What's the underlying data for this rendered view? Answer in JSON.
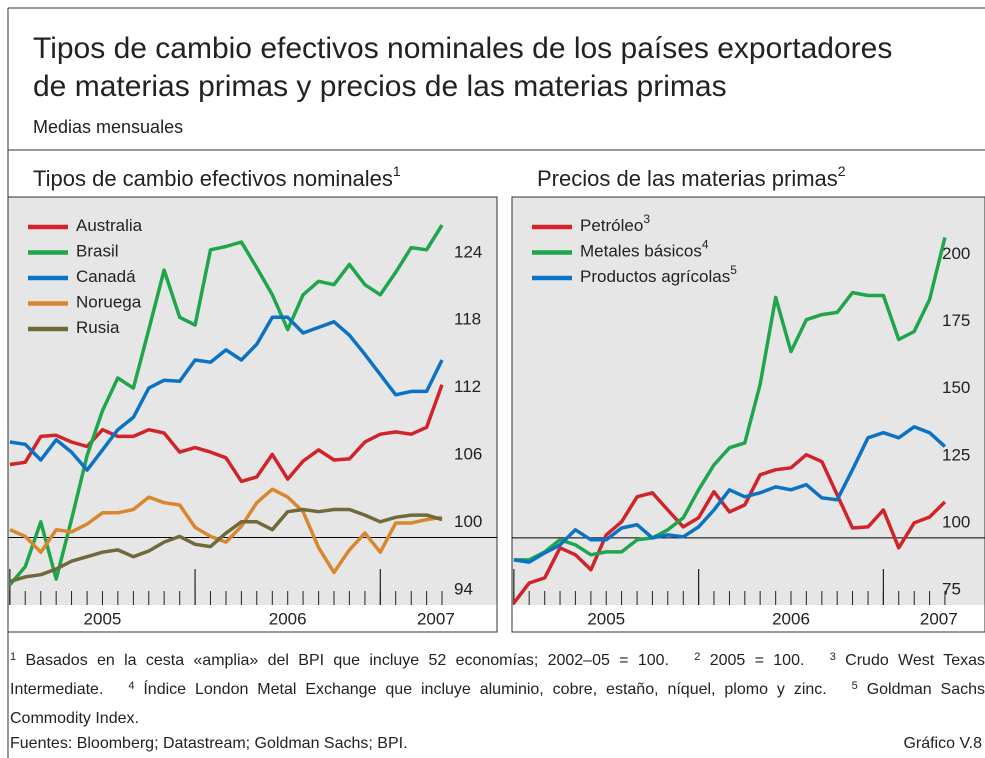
{
  "title": [
    "Tipos de cambio efectivos nominales de los países exportadores",
    "de materias primas y precios de las materias primas"
  ],
  "subtitle": "Medias mensuales",
  "chart_data": [
    {
      "type": "line",
      "title": "Tipos de cambio efectivos nominales",
      "title_note": "1",
      "x": [
        2005,
        2005.083,
        2005.167,
        2005.25,
        2005.333,
        2005.417,
        2005.5,
        2005.583,
        2005.667,
        2005.75,
        2005.833,
        2005.917,
        2006,
        2006.083,
        2006.167,
        2006.25,
        2006.333,
        2006.417,
        2006.5,
        2006.583,
        2006.667,
        2006.75,
        2006.833,
        2006.917,
        2007,
        2007.083,
        2007.167,
        2007.25,
        2007.333
      ],
      "xlim": [
        2004.99,
        2007.63
      ],
      "ylim": [
        94,
        130.3
      ],
      "yticks": [
        94,
        100,
        106,
        112,
        118,
        124
      ],
      "xticks": [
        {
          "value": 2005.5,
          "label": "2005"
        },
        {
          "value": 2006.5,
          "label": "2006"
        },
        {
          "value": 2007.3,
          "label": "2007"
        }
      ],
      "xticks_major": [
        2005,
        2006,
        2007
      ],
      "hline": 100,
      "grid": false,
      "legend": "upper left",
      "series": [
        {
          "name": "Australia",
          "color": "#d1232a",
          "values": [
            106.5,
            106.7,
            109.0,
            109.1,
            108.5,
            108.1,
            109.6,
            109.0,
            109.0,
            109.6,
            109.3,
            107.6,
            108.0,
            107.6,
            107.1,
            105.0,
            105.4,
            107.4,
            105.2,
            106.8,
            107.8,
            106.9,
            107.0,
            108.5,
            109.2,
            109.4,
            109.2,
            109.8,
            113.6
          ]
        },
        {
          "name": "Brasil",
          "color": "#1fa54b",
          "values": [
            95.8,
            97.4,
            101.4,
            96.3,
            101.6,
            107.3,
            111.3,
            114.2,
            113.3,
            118.5,
            123.8,
            119.6,
            118.9,
            125.6,
            125.9,
            126.3,
            124.0,
            121.6,
            118.5,
            121.6,
            122.8,
            122.5,
            124.3,
            122.5,
            121.6,
            123.6,
            125.8,
            125.6,
            127.8
          ]
        },
        {
          "name": "Canadá",
          "color": "#0b72c4",
          "values": [
            108.5,
            108.3,
            106.9,
            108.7,
            107.6,
            106.0,
            107.8,
            109.6,
            110.7,
            113.3,
            114.0,
            113.9,
            115.8,
            115.6,
            116.7,
            115.8,
            117.2,
            119.6,
            119.6,
            118.2,
            118.7,
            119.2,
            118.0,
            116.3,
            114.5,
            112.7,
            113.0,
            113.0,
            115.8
          ]
        },
        {
          "name": "Noruega",
          "color": "#d9862e",
          "values": [
            100.7,
            100.1,
            98.7,
            100.7,
            100.5,
            101.2,
            102.2,
            102.2,
            102.5,
            103.6,
            103.1,
            102.9,
            100.9,
            100.1,
            99.6,
            101.0,
            103.1,
            104.3,
            103.6,
            102.3,
            99.1,
            96.9,
            98.9,
            100.4,
            98.7,
            101.3,
            101.3,
            101.6,
            101.8
          ]
        },
        {
          "name": "Rusia",
          "color": "#6e6a3b",
          "values": [
            96.1,
            96.5,
            96.7,
            97.2,
            97.9,
            98.3,
            98.7,
            98.9,
            98.3,
            98.8,
            99.6,
            100.1,
            99.4,
            99.2,
            100.4,
            101.4,
            101.4,
            100.7,
            102.3,
            102.5,
            102.3,
            102.5,
            102.5,
            102.0,
            101.4,
            101.8,
            102.0,
            102.0,
            101.6
          ]
        }
      ]
    },
    {
      "type": "line",
      "title": "Precios de las materias primas",
      "title_note": "2",
      "x": [
        2005,
        2005.083,
        2005.167,
        2005.25,
        2005.333,
        2005.417,
        2005.5,
        2005.583,
        2005.667,
        2005.75,
        2005.833,
        2005.917,
        2006,
        2006.083,
        2006.167,
        2006.25,
        2006.333,
        2006.417,
        2006.5,
        2006.583,
        2006.667,
        2006.75,
        2006.833,
        2006.917,
        2007,
        2007.083,
        2007.167,
        2007.25,
        2007.333
      ],
      "xlim": [
        2004.99,
        2007.55
      ],
      "ylim": [
        75,
        227
      ],
      "yticks": [
        75,
        100,
        125,
        150,
        175,
        200
      ],
      "xticks": [
        {
          "value": 2005.5,
          "label": "2005"
        },
        {
          "value": 2006.5,
          "label": "2006"
        },
        {
          "value": 2007.3,
          "label": "2007"
        }
      ],
      "xticks_major": [
        2005,
        2006,
        2007
      ],
      "hline": 100,
      "grid": false,
      "legend": "upper left",
      "series": [
        {
          "name": "Petróleo",
          "note": "3",
          "color": "#d1232a",
          "values": [
            75.7,
            83.2,
            85.1,
            96.3,
            93.7,
            88.1,
            101.1,
            106.0,
            115.3,
            116.8,
            110.4,
            104.1,
            107.5,
            117.2,
            109.7,
            112.3,
            123.5,
            125.4,
            126.1,
            131.0,
            128.4,
            116.0,
            103.7,
            104.1,
            110.4,
            96.3,
            105.6,
            107.8,
            113.4
          ]
        },
        {
          "name": "Metales básicos",
          "note": "4",
          "color": "#1fa54b",
          "values": [
            91.8,
            91.8,
            94.8,
            99.3,
            97.4,
            93.7,
            94.8,
            94.8,
            99.3,
            100.0,
            103.0,
            107.5,
            117.9,
            127.2,
            133.6,
            135.4,
            157.1,
            189.6,
            169.4,
            181.3,
            183.2,
            184.0,
            191.4,
            190.3,
            190.3,
            173.9,
            176.9,
            188.8,
            211.9
          ]
        },
        {
          "name": "Productos agrícolas",
          "note": "5",
          "color": "#0b72c4",
          "values": [
            91.8,
            91.0,
            94.4,
            97.4,
            103.0,
            99.3,
            99.3,
            103.7,
            104.9,
            100.0,
            101.1,
            100.4,
            104.1,
            110.4,
            117.9,
            115.3,
            116.8,
            119.0,
            117.9,
            119.8,
            114.9,
            114.2,
            125.4,
            137.3,
            139.2,
            137.3,
            141.4,
            139.2,
            134.0
          ]
        }
      ]
    }
  ],
  "footnotes": [
    {
      "mark": "1",
      "text": "Basados en la cesta «amplia» del BPI que incluye 52 economías; 2002–05 = 100."
    },
    {
      "mark": "2",
      "text": "2005 = 100."
    },
    {
      "mark": "3",
      "text": "Crudo West Texas Intermediate."
    },
    {
      "mark": "4",
      "text": "Índice London Metal Exchange que incluye aluminio, cobre, estaño, níquel, plomo y zinc."
    },
    {
      "mark": "5",
      "text": "Goldman Sachs Commodity Index."
    }
  ],
  "sources": "Fuentes: Bloomberg; Datastream; Goldman Sachs; BPI.",
  "figure_label": "Gráfico V.8"
}
